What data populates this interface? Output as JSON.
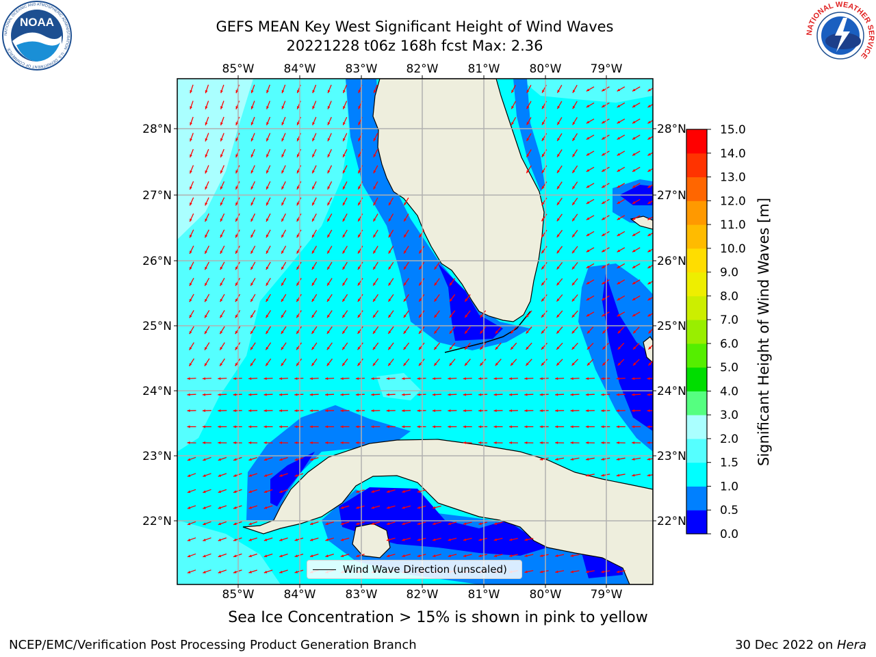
{
  "title": {
    "line1": "GEFS MEAN Key West Significant Height of Wind Waves",
    "line2": "20221228 t06z 168h fcst   Max: 2.36"
  },
  "logos": {
    "noaa": {
      "text": "NOAA",
      "ring_text": "NATIONAL OCEANIC AND ATMOSPHERIC ADMINISTRATION · U.S. DEPARTMENT OF COMMERCE"
    },
    "nws": {
      "ring_text": "NATIONAL WEATHER SERVICE"
    }
  },
  "map": {
    "lon_labels": [
      "85°W",
      "84°W",
      "83°W",
      "82°W",
      "81°W",
      "80°W",
      "79°W"
    ],
    "lat_labels": [
      "28°N",
      "27°N",
      "26°N",
      "25°N",
      "24°N",
      "23°N",
      "22°N"
    ],
    "legend_label": "Wind Wave Direction (unscaled)",
    "colors": {
      "land": "#eeeedd",
      "ocean": "#00ffff",
      "arrow": "#ff0000",
      "grid": "#b0b0b0"
    }
  },
  "colorbar": {
    "label": "Significant Height of Wind Waves [m]",
    "ticks": [
      "0.0",
      "0.5",
      "1.0",
      "1.5",
      "2.0",
      "3.0",
      "4.0",
      "5.0",
      "6.0",
      "7.0",
      "8.0",
      "9.0",
      "10.0",
      "11.0",
      "12.0",
      "13.0",
      "14.0",
      "15.0"
    ],
    "colors": [
      "#0000ff",
      "#0080ff",
      "#00ffff",
      "#55ffff",
      "#aaffff",
      "#55ff80",
      "#00dd00",
      "#55ee00",
      "#99ee00",
      "#ccee00",
      "#eeee00",
      "#ffdd00",
      "#ffbb00",
      "#ff9900",
      "#ff6600",
      "#ff3300",
      "#ff0000"
    ]
  },
  "caption": "Sea Ice Concentration > 15% is shown in pink to yellow",
  "footer": {
    "left": "NCEP/EMC/Verification Post Processing Product Generation Branch",
    "right_prefix": "30 Dec 2022 on ",
    "right_host": "Hera"
  }
}
